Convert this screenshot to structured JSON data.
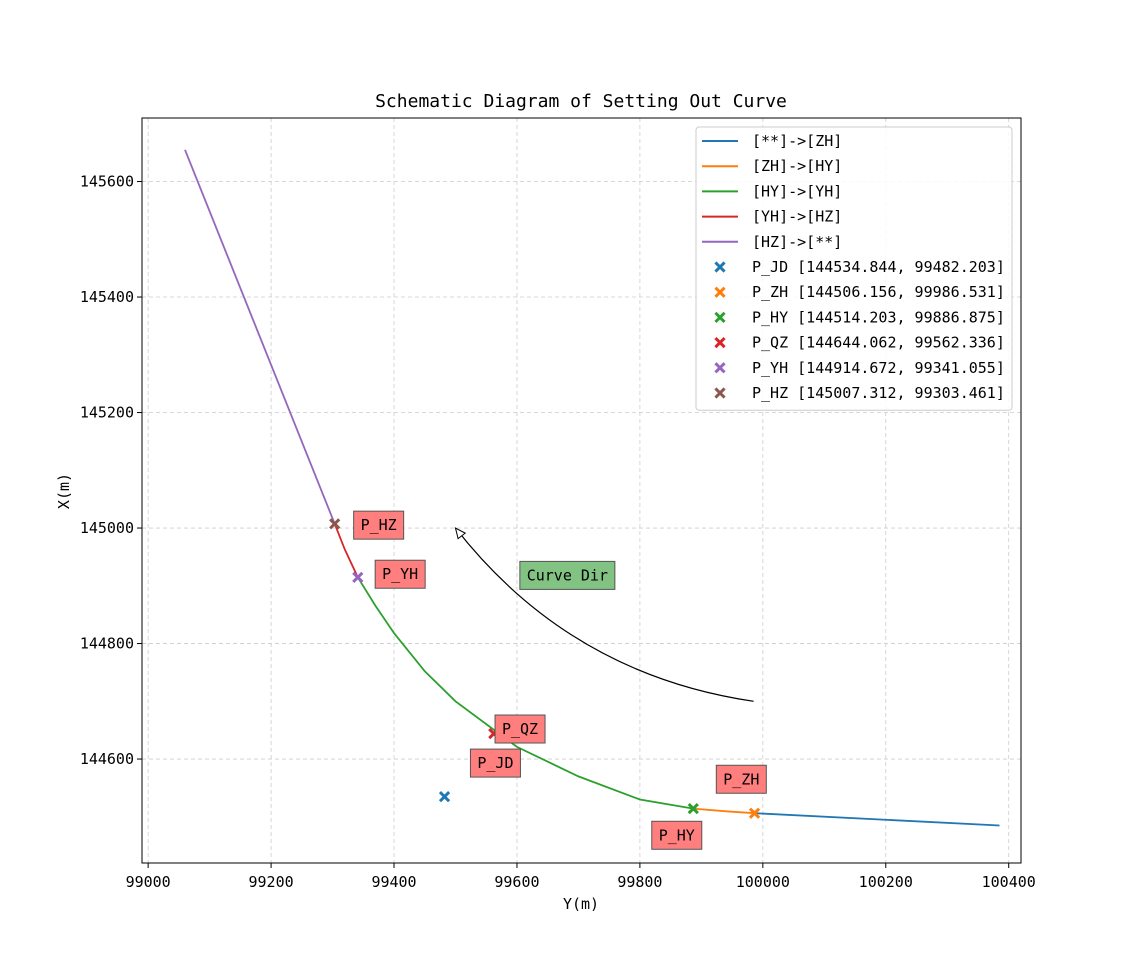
{
  "chart_data": {
    "type": "line",
    "title": "Schematic Diagram of Setting Out Curve",
    "xlabel": "Y(m)",
    "ylabel": "X(m)",
    "xlim": [
      98990,
      100420
    ],
    "ylim": [
      144420,
      145710
    ],
    "x_ticks": [
      "99000",
      "99200",
      "99400",
      "99600",
      "99800",
      "100000",
      "100200",
      "100400"
    ],
    "y_ticks": [
      "144600",
      "144800",
      "145000",
      "145200",
      "145400",
      "145600"
    ],
    "grid": true,
    "legend_position": "top-right",
    "series": [
      {
        "name": "[**]->[ZH]",
        "color": "#1f77b4",
        "points": [
          [
            99986.531,
            144506.156
          ],
          [
            100385,
            144485
          ]
        ]
      },
      {
        "name": "[ZH]->[HY]",
        "color": "#ff7f0e",
        "points": [
          [
            99986.531,
            144506.156
          ],
          [
            99940,
            144509.5
          ],
          [
            99886.875,
            144514.203
          ]
        ]
      },
      {
        "name": "[HY]->[YH]",
        "color": "#2ca02c",
        "points": [
          [
            99886.875,
            144514.203
          ],
          [
            99800,
            144530
          ],
          [
            99700,
            144570
          ],
          [
            99600,
            144621
          ],
          [
            99500,
            144700
          ],
          [
            99450,
            144752
          ],
          [
            99400,
            144818
          ],
          [
            99370,
            144865
          ],
          [
            99341.055,
            144914.672
          ]
        ]
      },
      {
        "name": "[YH]->[HZ]",
        "color": "#d62728",
        "points": [
          [
            99341.055,
            144914.672
          ],
          [
            99320,
            144963
          ],
          [
            99303.461,
            145007.312
          ]
        ]
      },
      {
        "name": "[HZ]->[**]",
        "color": "#9467bd",
        "points": [
          [
            99303.461,
            145007.312
          ],
          [
            99060,
            145655
          ]
        ]
      }
    ],
    "points": [
      {
        "name": "P_JD",
        "legend": "P_JD [144534.844, 99482.203]",
        "x": 99482.203,
        "y": 144534.844,
        "color": "#1f77b4"
      },
      {
        "name": "P_ZH",
        "legend": "P_ZH [144506.156, 99986.531]",
        "x": 99986.531,
        "y": 144506.156,
        "color": "#ff7f0e"
      },
      {
        "name": "P_HY",
        "legend": "P_HY [144514.203, 99886.875]",
        "x": 99886.875,
        "y": 144514.203,
        "color": "#2ca02c"
      },
      {
        "name": "P_QZ",
        "legend": "P_QZ [144644.062, 99562.336]",
        "x": 99562.336,
        "y": 144644.062,
        "color": "#d62728"
      },
      {
        "name": "P_YH",
        "legend": "P_YH [144914.672, 99341.055]",
        "x": 99341.055,
        "y": 144914.672,
        "color": "#9467bd"
      },
      {
        "name": "P_HZ",
        "legend": "P_HZ [145007.312, 99303.461]",
        "x": 99303.461,
        "y": 145007.312,
        "color": "#8c564b"
      }
    ],
    "point_labels": [
      {
        "text": "P_HZ",
        "x": 99375,
        "y": 145005
      },
      {
        "text": "P_YH",
        "x": 99410,
        "y": 144920
      },
      {
        "text": "P_QZ",
        "x": 99605,
        "y": 144652
      },
      {
        "text": "P_JD",
        "x": 99565,
        "y": 144593
      },
      {
        "text": "P_ZH",
        "x": 99965,
        "y": 144565
      },
      {
        "text": "P_HY",
        "x": 99860,
        "y": 144468
      }
    ],
    "annotation": {
      "text": "Curve Dir",
      "text_x": 99682,
      "text_y": 144918,
      "color": "#82c282",
      "arrow_from": [
        99985,
        144700
      ],
      "arrow_to": [
        99500,
        145000
      ]
    },
    "label_color": "#ff7f7f"
  }
}
